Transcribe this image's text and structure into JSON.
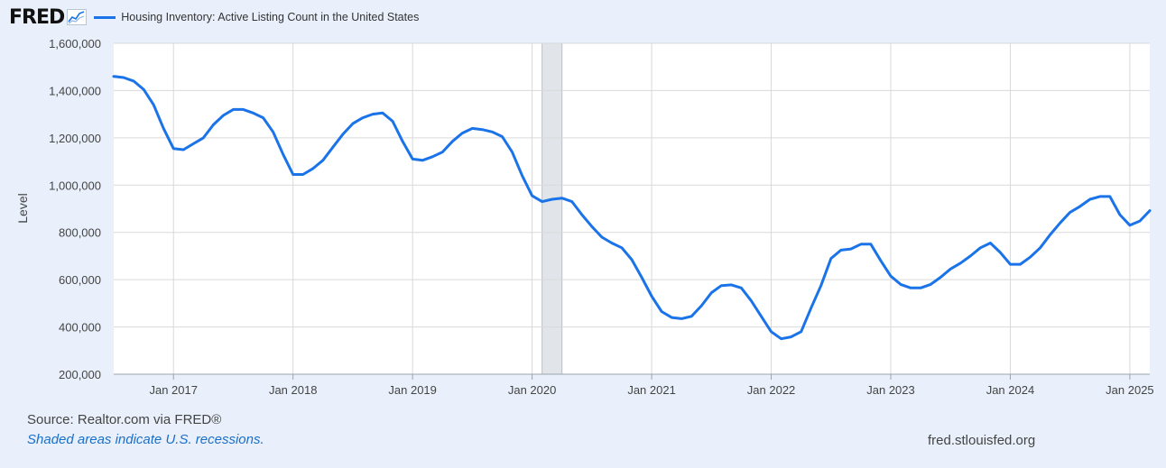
{
  "header": {
    "logo_text": "FRED",
    "legend_label": "Housing Inventory: Active Listing Count in the United States"
  },
  "footer": {
    "source": "Source: Realtor.com via FRED®",
    "note": "Shaded areas indicate U.S. recessions.",
    "url": "fred.stlouisfed.org"
  },
  "colors": {
    "line": "#1a73e8",
    "background": "#e9f0fb",
    "plot_bg": "#ffffff",
    "grid": "#d9d9d9",
    "recession": "#e1e4e8"
  },
  "chart_data": {
    "type": "line",
    "title": "",
    "xlabel": "",
    "ylabel": "Level",
    "ylim": [
      200000,
      1600000
    ],
    "yticks": [
      200000,
      400000,
      600000,
      800000,
      1000000,
      1200000,
      1400000,
      1600000
    ],
    "ytick_labels": [
      "200,000",
      "400,000",
      "600,000",
      "800,000",
      "1,000,000",
      "1,200,000",
      "1,400,000",
      "1,600,000"
    ],
    "xlim": [
      "2016-07",
      "2025-03"
    ],
    "xticks": [
      "2017-01",
      "2018-01",
      "2019-01",
      "2020-01",
      "2021-01",
      "2022-01",
      "2023-01",
      "2024-01",
      "2025-01"
    ],
    "xtick_labels": [
      "Jan 2017",
      "Jan 2018",
      "Jan 2019",
      "Jan 2020",
      "Jan 2021",
      "Jan 2022",
      "Jan 2023",
      "Jan 2024",
      "Jan 2025"
    ],
    "grid": true,
    "recessions": [
      {
        "start": "2020-02",
        "end": "2020-04"
      }
    ],
    "series": [
      {
        "name": "Housing Inventory: Active Listing Count in the United States",
        "x": [
          "2016-07",
          "2016-08",
          "2016-09",
          "2016-10",
          "2016-11",
          "2016-12",
          "2017-01",
          "2017-02",
          "2017-03",
          "2017-04",
          "2017-05",
          "2017-06",
          "2017-07",
          "2017-08",
          "2017-09",
          "2017-10",
          "2017-11",
          "2017-12",
          "2018-01",
          "2018-02",
          "2018-03",
          "2018-04",
          "2018-05",
          "2018-06",
          "2018-07",
          "2018-08",
          "2018-09",
          "2018-10",
          "2018-11",
          "2018-12",
          "2019-01",
          "2019-02",
          "2019-03",
          "2019-04",
          "2019-05",
          "2019-06",
          "2019-07",
          "2019-08",
          "2019-09",
          "2019-10",
          "2019-11",
          "2019-12",
          "2020-01",
          "2020-02",
          "2020-03",
          "2020-04",
          "2020-05",
          "2020-06",
          "2020-07",
          "2020-08",
          "2020-09",
          "2020-10",
          "2020-11",
          "2020-12",
          "2021-01",
          "2021-02",
          "2021-03",
          "2021-04",
          "2021-05",
          "2021-06",
          "2021-07",
          "2021-08",
          "2021-09",
          "2021-10",
          "2021-11",
          "2021-12",
          "2022-01",
          "2022-02",
          "2022-03",
          "2022-04",
          "2022-05",
          "2022-06",
          "2022-07",
          "2022-08",
          "2022-09",
          "2022-10",
          "2022-11",
          "2022-12",
          "2023-01",
          "2023-02",
          "2023-03",
          "2023-04",
          "2023-05",
          "2023-06",
          "2023-07",
          "2023-08",
          "2023-09",
          "2023-10",
          "2023-11",
          "2023-12",
          "2024-01",
          "2024-02",
          "2024-03",
          "2024-04",
          "2024-05",
          "2024-06",
          "2024-07",
          "2024-08",
          "2024-09",
          "2024-10",
          "2024-11",
          "2024-12",
          "2025-01",
          "2025-02",
          "2025-03"
        ],
        "values": [
          1460000,
          1455000,
          1440000,
          1405000,
          1340000,
          1240000,
          1155000,
          1150000,
          1175000,
          1200000,
          1255000,
          1295000,
          1320000,
          1320000,
          1305000,
          1285000,
          1225000,
          1130000,
          1045000,
          1045000,
          1070000,
          1105000,
          1160000,
          1215000,
          1260000,
          1285000,
          1300000,
          1305000,
          1270000,
          1185000,
          1110000,
          1105000,
          1120000,
          1140000,
          1185000,
          1220000,
          1240000,
          1235000,
          1225000,
          1205000,
          1140000,
          1040000,
          955000,
          930000,
          940000,
          945000,
          930000,
          875000,
          825000,
          780000,
          755000,
          735000,
          685000,
          610000,
          530000,
          465000,
          440000,
          435000,
          445000,
          490000,
          545000,
          575000,
          578000,
          565000,
          510000,
          445000,
          380000,
          350000,
          358000,
          380000,
          480000,
          575000,
          690000,
          725000,
          730000,
          750000,
          750000,
          680000,
          615000,
          580000,
          565000,
          565000,
          580000,
          610000,
          645000,
          670000,
          700000,
          735000,
          755000,
          715000,
          665000,
          665000,
          695000,
          735000,
          790000,
          840000,
          885000,
          910000,
          940000,
          952000,
          952000,
          875000,
          830000,
          848000,
          892000
        ]
      }
    ]
  }
}
